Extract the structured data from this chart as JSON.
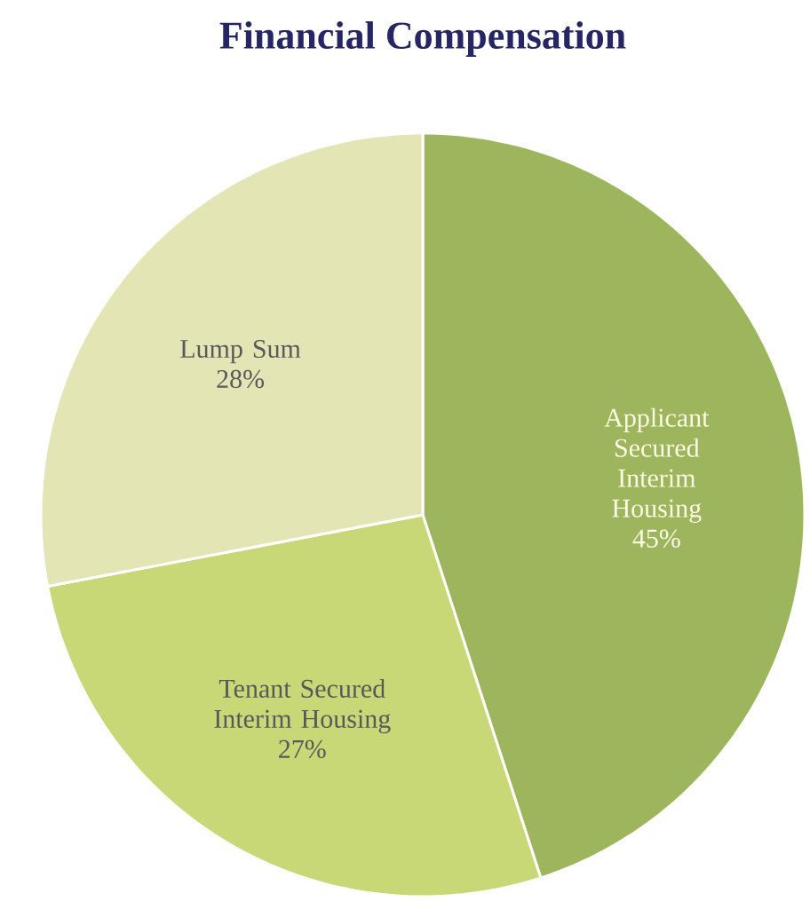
{
  "chart_data": {
    "type": "pie",
    "title": "Financial Compensation",
    "categories": [
      "Applicant Secured Interim Housing",
      "Tenant Secured Interim Housing",
      "Lump Sum"
    ],
    "values": [
      45,
      27,
      28
    ],
    "colors": [
      "#9db55c",
      "#c9d877",
      "#e3e5b5"
    ],
    "value_labels": [
      "45%",
      "27%",
      "28%"
    ]
  }
}
